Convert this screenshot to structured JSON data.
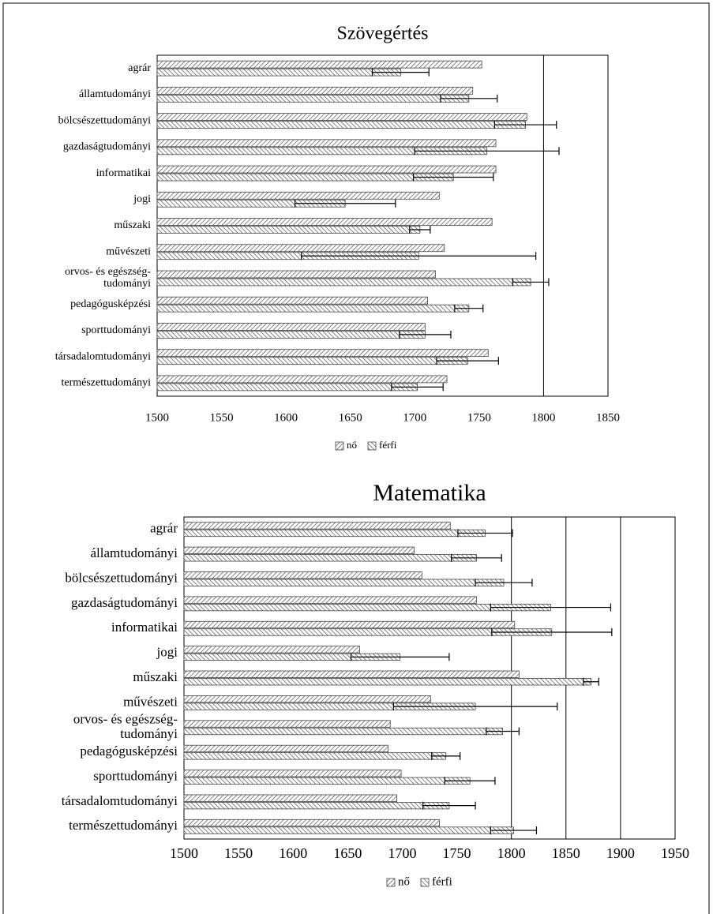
{
  "chart_data": [
    {
      "type": "bar",
      "title": "Szövegértés",
      "categories": [
        "agrár",
        "államtudományi",
        "bölcsészettudományi",
        "gazdaságtudományi",
        "informatikai",
        "jogi",
        "műszaki",
        "művészeti",
        "orvos- és egészség-\ntudományi",
        "pedagógusképzési",
        "sporttudományi",
        "társadalomtudományi",
        "természettudományi"
      ],
      "series": [
        {
          "name": "nő",
          "color": "#444444",
          "hatch": "/",
          "values": [
            1752,
            1745,
            1787,
            1763,
            1763,
            1719,
            1760,
            1723,
            1716,
            1710,
            1708,
            1757,
            1725
          ]
        },
        {
          "name": "férfi",
          "color": "#444444",
          "hatch": "\\",
          "values": [
            1689,
            1742,
            1786,
            1756,
            1730,
            1646,
            1704,
            1703,
            1790,
            1742,
            1708,
            1741,
            1702
          ],
          "errors": [
            22,
            22,
            24,
            56,
            31,
            39,
            8,
            91,
            14,
            11,
            20,
            24,
            20
          ]
        }
      ],
      "xlim": [
        1500,
        1850
      ],
      "xticks": [
        1500,
        1550,
        1600,
        1650,
        1700,
        1750,
        1800,
        1850
      ],
      "grid_ticks": [
        1800
      ],
      "legend": "bottom"
    },
    {
      "type": "bar",
      "title": "Matematika",
      "categories": [
        "agrár",
        "államtudományi",
        "bölcsészettudományi",
        "gazdaságtudományi",
        "informatikai",
        "jogi",
        "műszaki",
        "művészeti",
        "orvos- és egészség-\ntudományi",
        "pedagógusképzési",
        "sporttudományi",
        "társadalomtudományi",
        "természettudományi"
      ],
      "series": [
        {
          "name": "nő",
          "color": "#444444",
          "hatch": "/",
          "values": [
            1744,
            1711,
            1718,
            1768,
            1803,
            1661,
            1807,
            1726,
            1689,
            1687,
            1699,
            1695,
            1734
          ]
        },
        {
          "name": "férfi",
          "color": "#444444",
          "hatch": "\\",
          "values": [
            1776,
            1768,
            1793,
            1836,
            1837,
            1698,
            1873,
            1767,
            1792,
            1740,
            1762,
            1743,
            1802
          ],
          "errors": [
            25,
            23,
            26,
            55,
            55,
            45,
            7,
            75,
            15,
            13,
            23,
            24,
            21
          ]
        }
      ],
      "xlim": [
        1500,
        1950
      ],
      "xticks": [
        1500,
        1550,
        1600,
        1650,
        1700,
        1750,
        1800,
        1850,
        1900,
        1950
      ],
      "grid_ticks": [
        1800,
        1850,
        1900
      ],
      "legend": "bottom"
    }
  ]
}
